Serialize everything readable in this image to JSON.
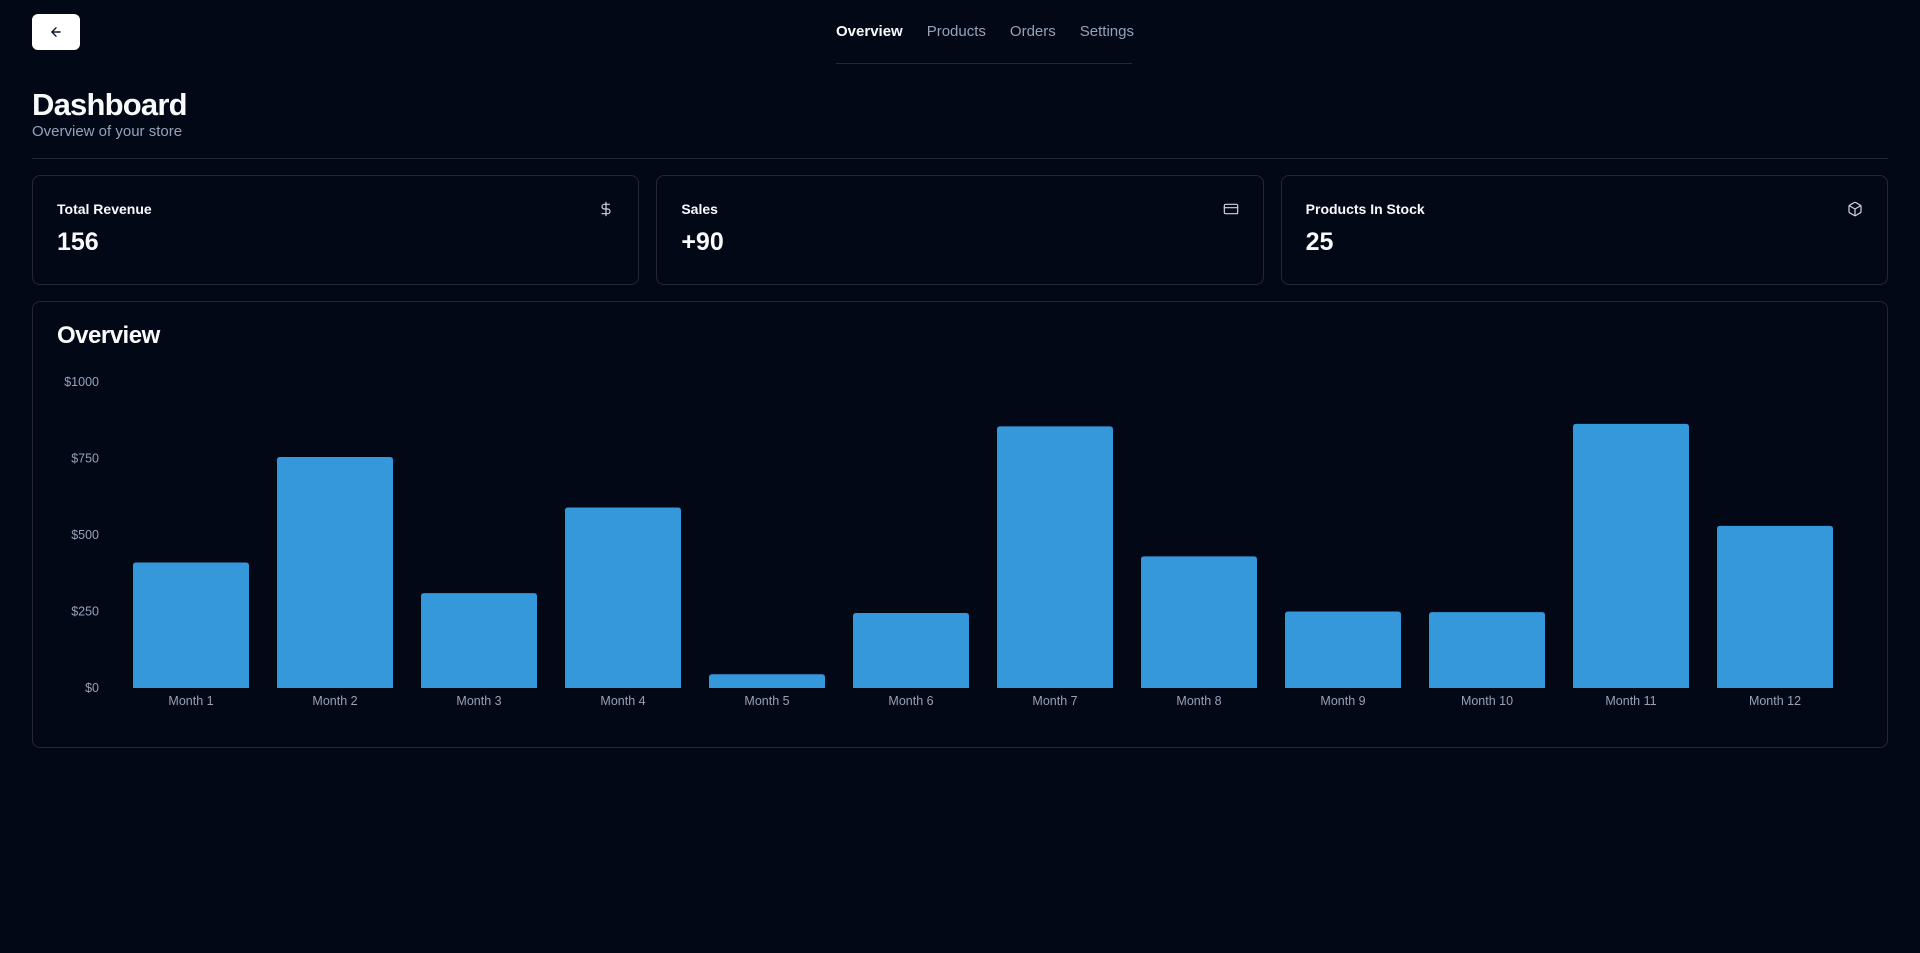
{
  "topbar": {
    "back_icon": "arrow-left-icon",
    "nav": [
      {
        "label": "Overview",
        "active": true
      },
      {
        "label": "Products",
        "active": false
      },
      {
        "label": "Orders",
        "active": false
      },
      {
        "label": "Settings",
        "active": false
      }
    ]
  },
  "header": {
    "title": "Dashboard",
    "subtitle": "Overview of your store"
  },
  "cards": [
    {
      "label": "Total Revenue",
      "value": "156",
      "icon": "dollar-sign-icon"
    },
    {
      "label": "Sales",
      "value": "+90",
      "icon": "credit-card-icon"
    },
    {
      "label": "Products In Stock",
      "value": "25",
      "icon": "package-icon"
    }
  ],
  "overview": {
    "title": "Overview"
  },
  "colors": {
    "background": "#030817",
    "bar": "#3498db",
    "border": "#1e293b",
    "muted_text": "#94a3b8"
  },
  "chart_data": {
    "type": "bar",
    "categories": [
      "Month 1",
      "Month 2",
      "Month 3",
      "Month 4",
      "Month 5",
      "Month 6",
      "Month 7",
      "Month 8",
      "Month 9",
      "Month 10",
      "Month 11",
      "Month 12"
    ],
    "values": [
      410,
      755,
      310,
      590,
      45,
      245,
      855,
      430,
      250,
      248,
      863,
      530
    ],
    "y_ticks": [
      "$0",
      "$250",
      "$500",
      "$750",
      "$1000"
    ],
    "ylim": [
      0,
      1000
    ],
    "grid": false
  }
}
